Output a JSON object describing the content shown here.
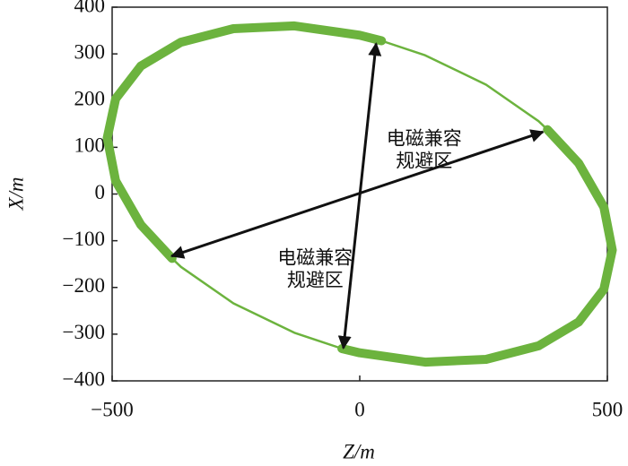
{
  "chart_data": {
    "type": "line",
    "xlabel": "Z/m",
    "ylabel": "X/m",
    "xlim": [
      -500,
      500
    ],
    "ylim": [
      -400,
      400
    ],
    "xticks": [
      {
        "value": -500,
        "label": "−500"
      },
      0,
      500
    ],
    "yticks": [
      {
        "value": -400,
        "label": "−400"
      },
      {
        "value": -300,
        "label": "−300"
      },
      {
        "value": -200,
        "label": "−200"
      },
      {
        "value": -100,
        "label": "−100"
      },
      0,
      100,
      200,
      300,
      400
    ],
    "series": [
      {
        "color": "#6cb33e",
        "width": 10,
        "x": [
          -379,
          -442,
          -493,
          -510,
          -493,
          -442,
          -361,
          -255,
          -132,
          0,
          44,
          null,
          379,
          442,
          493,
          510,
          493,
          442,
          361,
          255,
          132,
          0,
          -36
        ],
        "y": [
          -138,
          -66,
          28,
          120,
          204,
          274,
          325,
          354,
          360,
          340,
          328,
          null,
          138,
          66,
          -28,
          -120,
          -204,
          -274,
          -325,
          -354,
          -360,
          -340,
          -331
        ]
      },
      {
        "color": "#6cb33e",
        "width": 2.5,
        "x": [
          44,
          132,
          255,
          361,
          379,
          null,
          -36,
          -132,
          -255,
          -361,
          -379
        ],
        "y": [
          328,
          297,
          234,
          156,
          138,
          null,
          -331,
          -297,
          -234,
          -156,
          -138
        ]
      }
    ],
    "arrows": [
      {
        "x": [
          33,
          -33
        ],
        "y": [
          322,
          -330
        ]
      },
      {
        "x": [
          370,
          -380
        ],
        "y": [
          133,
          -133
        ]
      }
    ],
    "annotations": [
      {
        "lines": [
          "电磁兼容",
          "规避区"
        ],
        "x": 130,
        "y": 115
      },
      {
        "lines": [
          "电磁兼容",
          "规避区"
        ],
        "x": -90,
        "y": -140
      }
    ]
  }
}
